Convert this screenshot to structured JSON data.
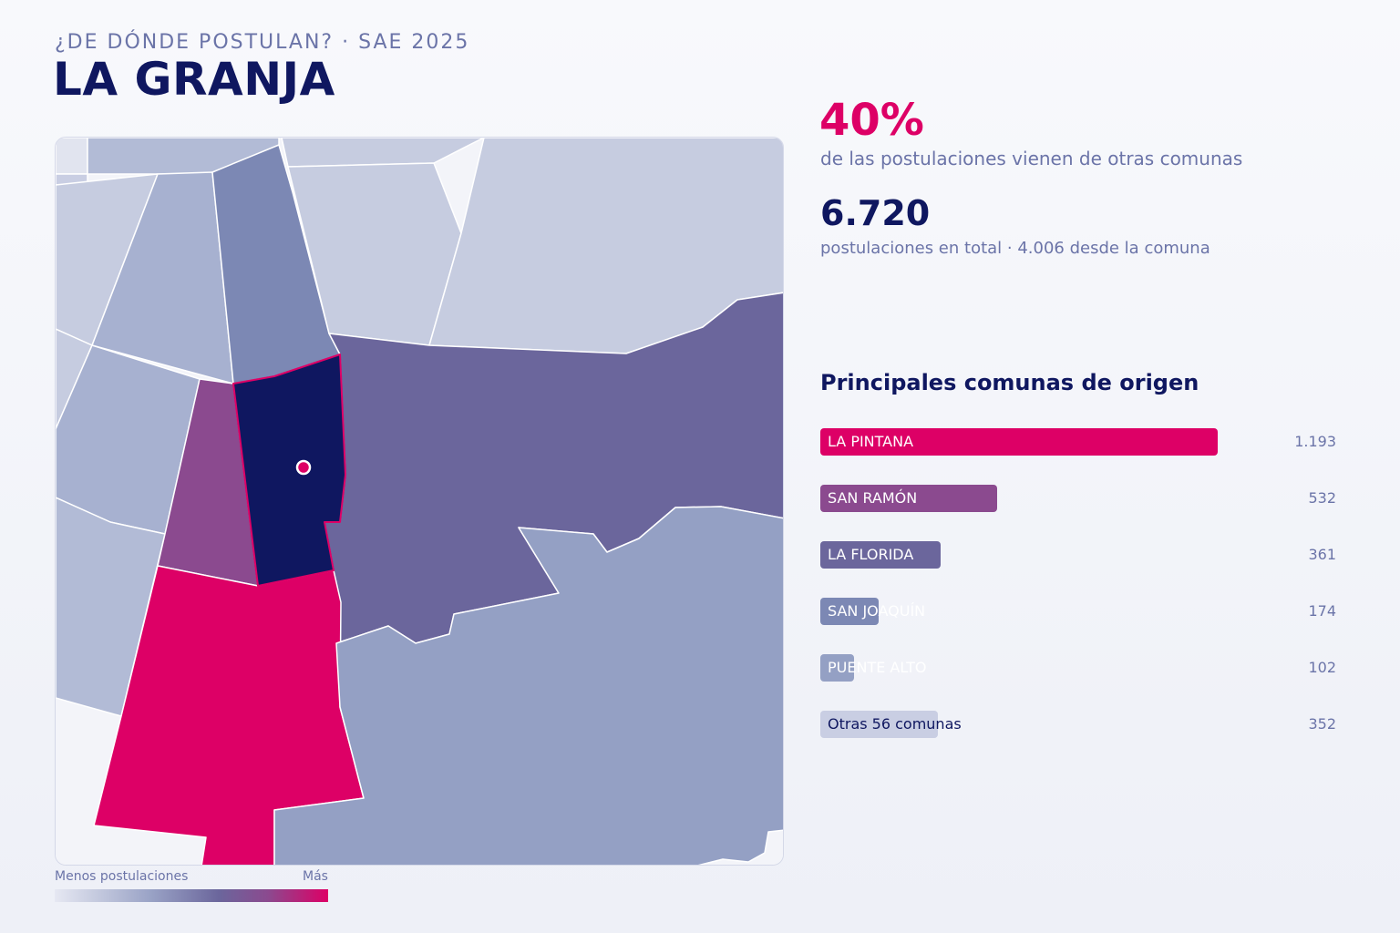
{
  "header": {
    "kicker": "¿DE DÓNDE POSTULAN? · SAE 2025",
    "title": "LA GRANJA"
  },
  "stats": {
    "percent": "40%",
    "percent_desc": "de las postulaciones vienen de otras comunas",
    "total": "6.720",
    "total_desc": "postulaciones en total · 4.006 desde la comuna"
  },
  "ranking": {
    "title": "Principales comunas de origen",
    "max_value": 1193,
    "items": [
      {
        "label": "LA PINTANA",
        "value": 1193,
        "value_text": "1.193",
        "color": "#dd0066"
      },
      {
        "label": "SAN RAMÓN",
        "value": 532,
        "value_text": "532",
        "color": "#8b4a8f"
      },
      {
        "label": "LA FLORIDA",
        "value": 361,
        "value_text": "361",
        "color": "#6b669c"
      },
      {
        "label": "SAN JOAQUÍN",
        "value": 174,
        "value_text": "174",
        "color": "#7c88b4"
      },
      {
        "label": "PUENTE ALTO",
        "value": 102,
        "value_text": "102",
        "color": "#94a0c4"
      },
      {
        "label": "Otras 56 comunas",
        "value": 352,
        "value_text": "352",
        "color": "#c9cee3"
      }
    ]
  },
  "legend": {
    "low": "Menos postulaciones",
    "high": "Más"
  },
  "map": {
    "selected_commune": "LA GRANJA",
    "colors": {
      "selected": "#0f1760",
      "highlight_outline": "#dd0066",
      "top_origin": "#dd0066",
      "second_origin": "#8b4a8f",
      "third_origin": "#6b669c",
      "fourth_origin": "#7c88b4",
      "fifth_origin": "#94a0c4",
      "low": "#c6cce0",
      "background": "#f3f4f9"
    }
  }
}
